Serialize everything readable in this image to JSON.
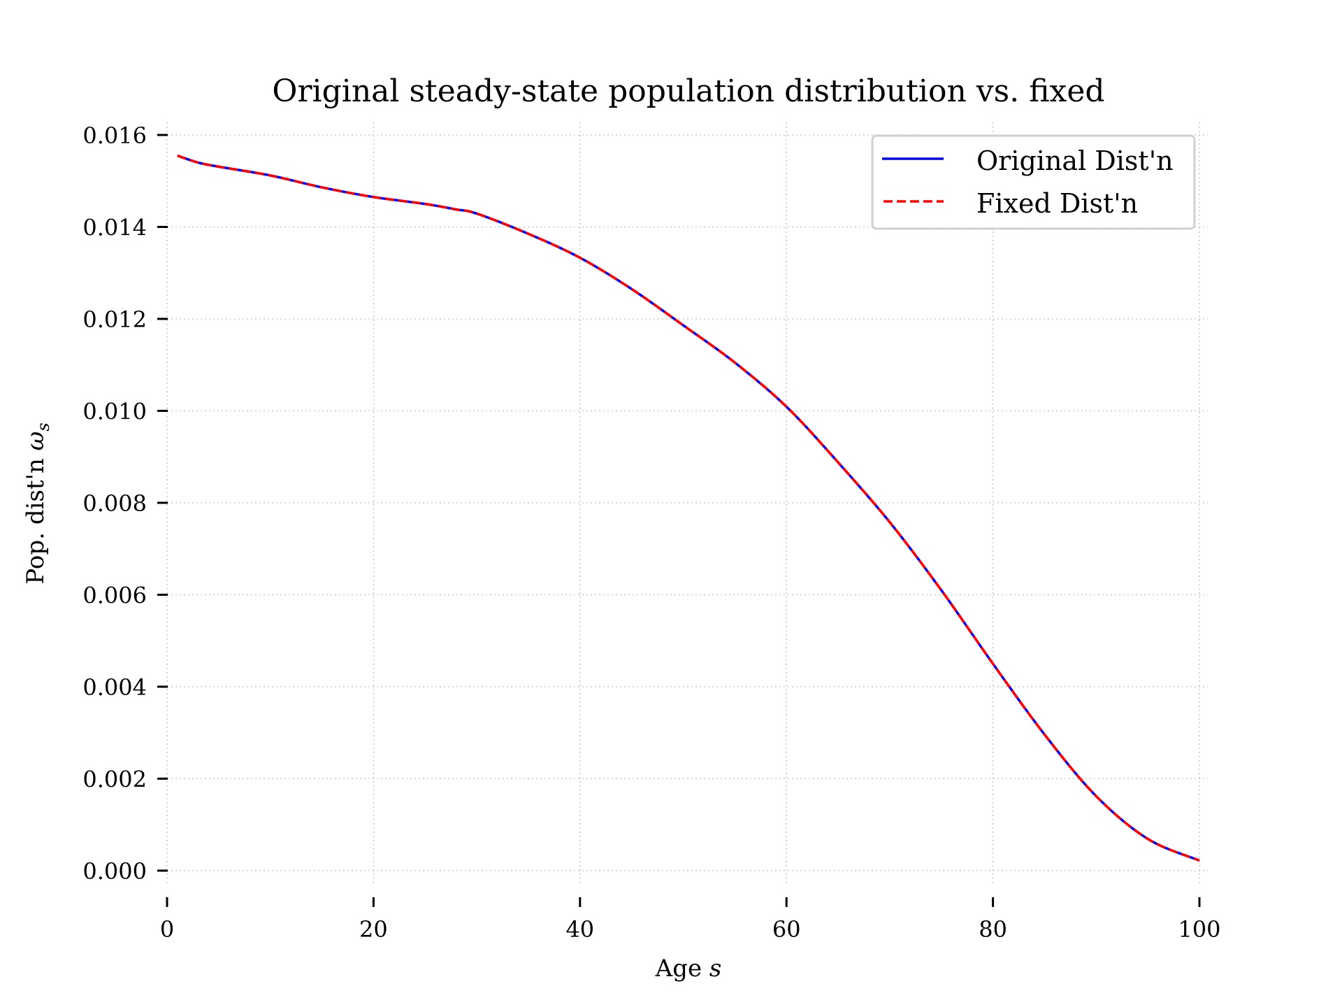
{
  "chart_data": {
    "type": "line",
    "title": "Original steady-state population distribution vs. fixed",
    "xlabel": "Age",
    "xlabel_var": "s",
    "ylabel": "Pop. dist'n",
    "ylabel_var": "ω",
    "ylabel_sub": "s",
    "xlim": [
      0,
      100
    ],
    "ylim": [
      0,
      0.016
    ],
    "xticks": [
      0,
      20,
      40,
      60,
      80,
      100
    ],
    "xtick_labels": [
      "0",
      "20",
      "40",
      "60",
      "80",
      "100"
    ],
    "yticks": [
      0,
      0.002,
      0.004,
      0.006,
      0.008,
      0.01,
      0.012,
      0.014,
      0.016
    ],
    "ytick_labels": [
      "0.000",
      "0.002",
      "0.004",
      "0.006",
      "0.008",
      "0.010",
      "0.012",
      "0.014",
      "0.016"
    ],
    "grid": true,
    "legend_position": "top-right",
    "x": [
      1,
      3,
      5,
      10,
      15,
      20,
      25,
      28,
      30,
      35,
      40,
      45,
      50,
      55,
      60,
      65,
      70,
      75,
      80,
      85,
      90,
      95,
      100
    ],
    "series": [
      {
        "name": "Original Dist'n",
        "color": "#0000ff",
        "style": "solid",
        "values": [
          0.01555,
          0.0154,
          0.01531,
          0.01512,
          0.01486,
          0.01465,
          0.0145,
          0.01438,
          0.01429,
          0.01385,
          0.01333,
          0.01265,
          0.01186,
          0.01105,
          0.01009,
          0.00888,
          0.00758,
          0.0061,
          0.0045,
          0.00296,
          0.00162,
          0.00069,
          0.00022
        ]
      },
      {
        "name": "Fixed Dist'n",
        "color": "#ff0000",
        "style": "dashed",
        "values": [
          0.01555,
          0.0154,
          0.01531,
          0.01512,
          0.01486,
          0.01465,
          0.0145,
          0.01438,
          0.01429,
          0.01385,
          0.01333,
          0.01265,
          0.01186,
          0.01105,
          0.01009,
          0.00888,
          0.00758,
          0.0061,
          0.0045,
          0.00296,
          0.00162,
          0.00069,
          0.00022
        ]
      }
    ]
  }
}
